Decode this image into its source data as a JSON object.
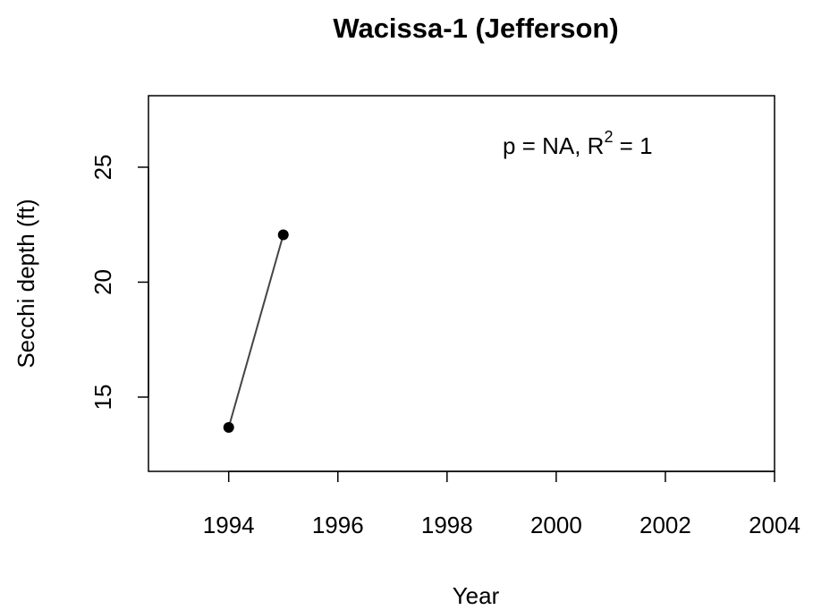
{
  "chart_data": {
    "type": "line",
    "title": "Wacissa-1 (Jefferson)",
    "x_label": "Year",
    "y_label": "Secchi depth (ft)",
    "annotation": [
      "p = NA, R",
      "2",
      " = 1"
    ],
    "x": [
      1994,
      1995
    ],
    "series": [
      {
        "color": "#000000",
        "values": [
          13.68,
          22.06
        ]
      }
    ],
    "xlim": [
      1992.53,
      2004
    ],
    "xticks": [
      1994,
      1996,
      1998,
      2000,
      2002,
      2004
    ],
    "ylim": [
      11.77,
      28.11
    ],
    "yticks": [
      15,
      20,
      25
    ]
  }
}
